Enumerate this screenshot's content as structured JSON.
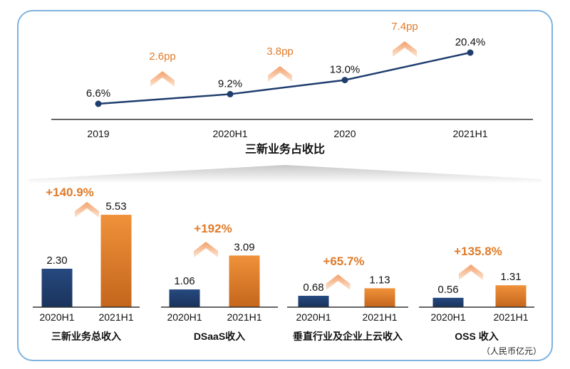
{
  "colors": {
    "navy": "#1f3d6e",
    "orange": "#e07b2a",
    "line": "#1f3d6e",
    "grey": "#666666"
  },
  "chart_data": [
    {
      "type": "line",
      "title": "三新业务占收比",
      "categories": [
        "2019",
        "2020H1",
        "2020",
        "2021H1"
      ],
      "values": [
        6.6,
        9.2,
        13.0,
        20.4
      ],
      "value_labels": [
        "6.6%",
        "9.2%",
        "13.0%",
        "20.4%"
      ],
      "increments": [
        "2.6pp",
        "3.8pp",
        "7.4pp"
      ],
      "ylim": [
        0,
        22
      ]
    },
    {
      "type": "bar",
      "title": "三新业务总收入",
      "categories": [
        "2020H1",
        "2021H1"
      ],
      "values": [
        2.3,
        5.53
      ],
      "value_labels": [
        "2.30",
        "5.53"
      ],
      "growth": "+140.9%"
    },
    {
      "type": "bar",
      "title": "DSaaS收入",
      "categories": [
        "2020H1",
        "2021H1"
      ],
      "values": [
        1.06,
        3.09
      ],
      "value_labels": [
        "1.06",
        "3.09"
      ],
      "growth": "+192%"
    },
    {
      "type": "bar",
      "title": "垂直行业及企业上云收入",
      "categories": [
        "2020H1",
        "2021H1"
      ],
      "values": [
        0.68,
        1.13
      ],
      "value_labels": [
        "0.68",
        "1.13"
      ],
      "growth": "+65.7%"
    },
    {
      "type": "bar",
      "title": "OSS 收入",
      "categories": [
        "2020H1",
        "2021H1"
      ],
      "values": [
        0.56,
        1.31
      ],
      "value_labels": [
        "0.56",
        "1.31"
      ],
      "growth": "+135.8%"
    }
  ],
  "unit_note": "（人民币亿元）"
}
